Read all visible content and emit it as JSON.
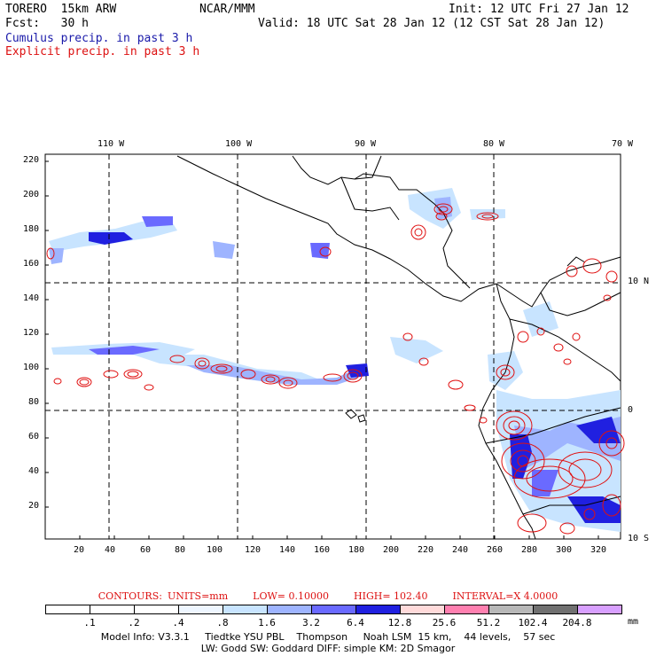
{
  "header": {
    "model": "TORERO  15km ARW",
    "org": "NCAR/MMM",
    "init": "Init: 12 UTC Fri 27 Jan 12",
    "fcst": "Fcst:   30 h",
    "valid": "Valid: 18 UTC Sat 28 Jan 12 (12 CST Sat 28 Jan 12)",
    "field1": "Cumulus precip. in past 3 h",
    "field2": "Explicit precip. in past 3 h"
  },
  "map": {
    "top_lon_labels": [
      "110 W",
      "100 W",
      "90 W",
      "80 W",
      "70 W"
    ],
    "right_lat_labels": [
      "10 N",
      "0",
      "10 S"
    ],
    "y_ticks": [
      "220",
      "200",
      "180",
      "160",
      "140",
      "120",
      "100",
      "80",
      "60",
      "40",
      "20"
    ],
    "x_ticks": [
      "20",
      "40",
      "60",
      "80",
      "100",
      "120",
      "140",
      "160",
      "180",
      "200",
      "220",
      "240",
      "260",
      "280",
      "300",
      "320"
    ],
    "colors": {
      "coast": "#000000",
      "cumulus_light": "#c8e4ff",
      "cumulus_mid": "#8a9cff",
      "cumulus_dark": "#2020e0",
      "explicit": "#e01010"
    }
  },
  "contours": {
    "label": "CONTOURS:",
    "units": "UNITS=mm",
    "low": "LOW= 0.10000",
    "high": "HIGH= 102.40",
    "interval": "INTERVAL=X 4.0000"
  },
  "legend": {
    "labels": [
      ".1",
      ".2",
      ".4",
      ".8",
      "1.6",
      "3.2",
      "6.4",
      "12.8",
      "25.6",
      "51.2",
      "102.4",
      "204.8"
    ],
    "unit": "mm",
    "colors": [
      "#ffffff",
      "#ffffff",
      "#ffffff",
      "#eef6ff",
      "#c8e4ff",
      "#9eb4ff",
      "#6a6aff",
      "#2020e0",
      "#ffdada",
      "#ff80b0",
      "#b8b8b8",
      "#707070",
      "#d8a0ff"
    ]
  },
  "footer": {
    "line1": "Model Info: V3.3.1     Tiedtke YSU PBL    Thompson     Noah LSM  15 km,    44 levels,    57 sec",
    "line2": "LW: Godd SW: Goddard DIFF: simple KM: 2D Smagor"
  }
}
